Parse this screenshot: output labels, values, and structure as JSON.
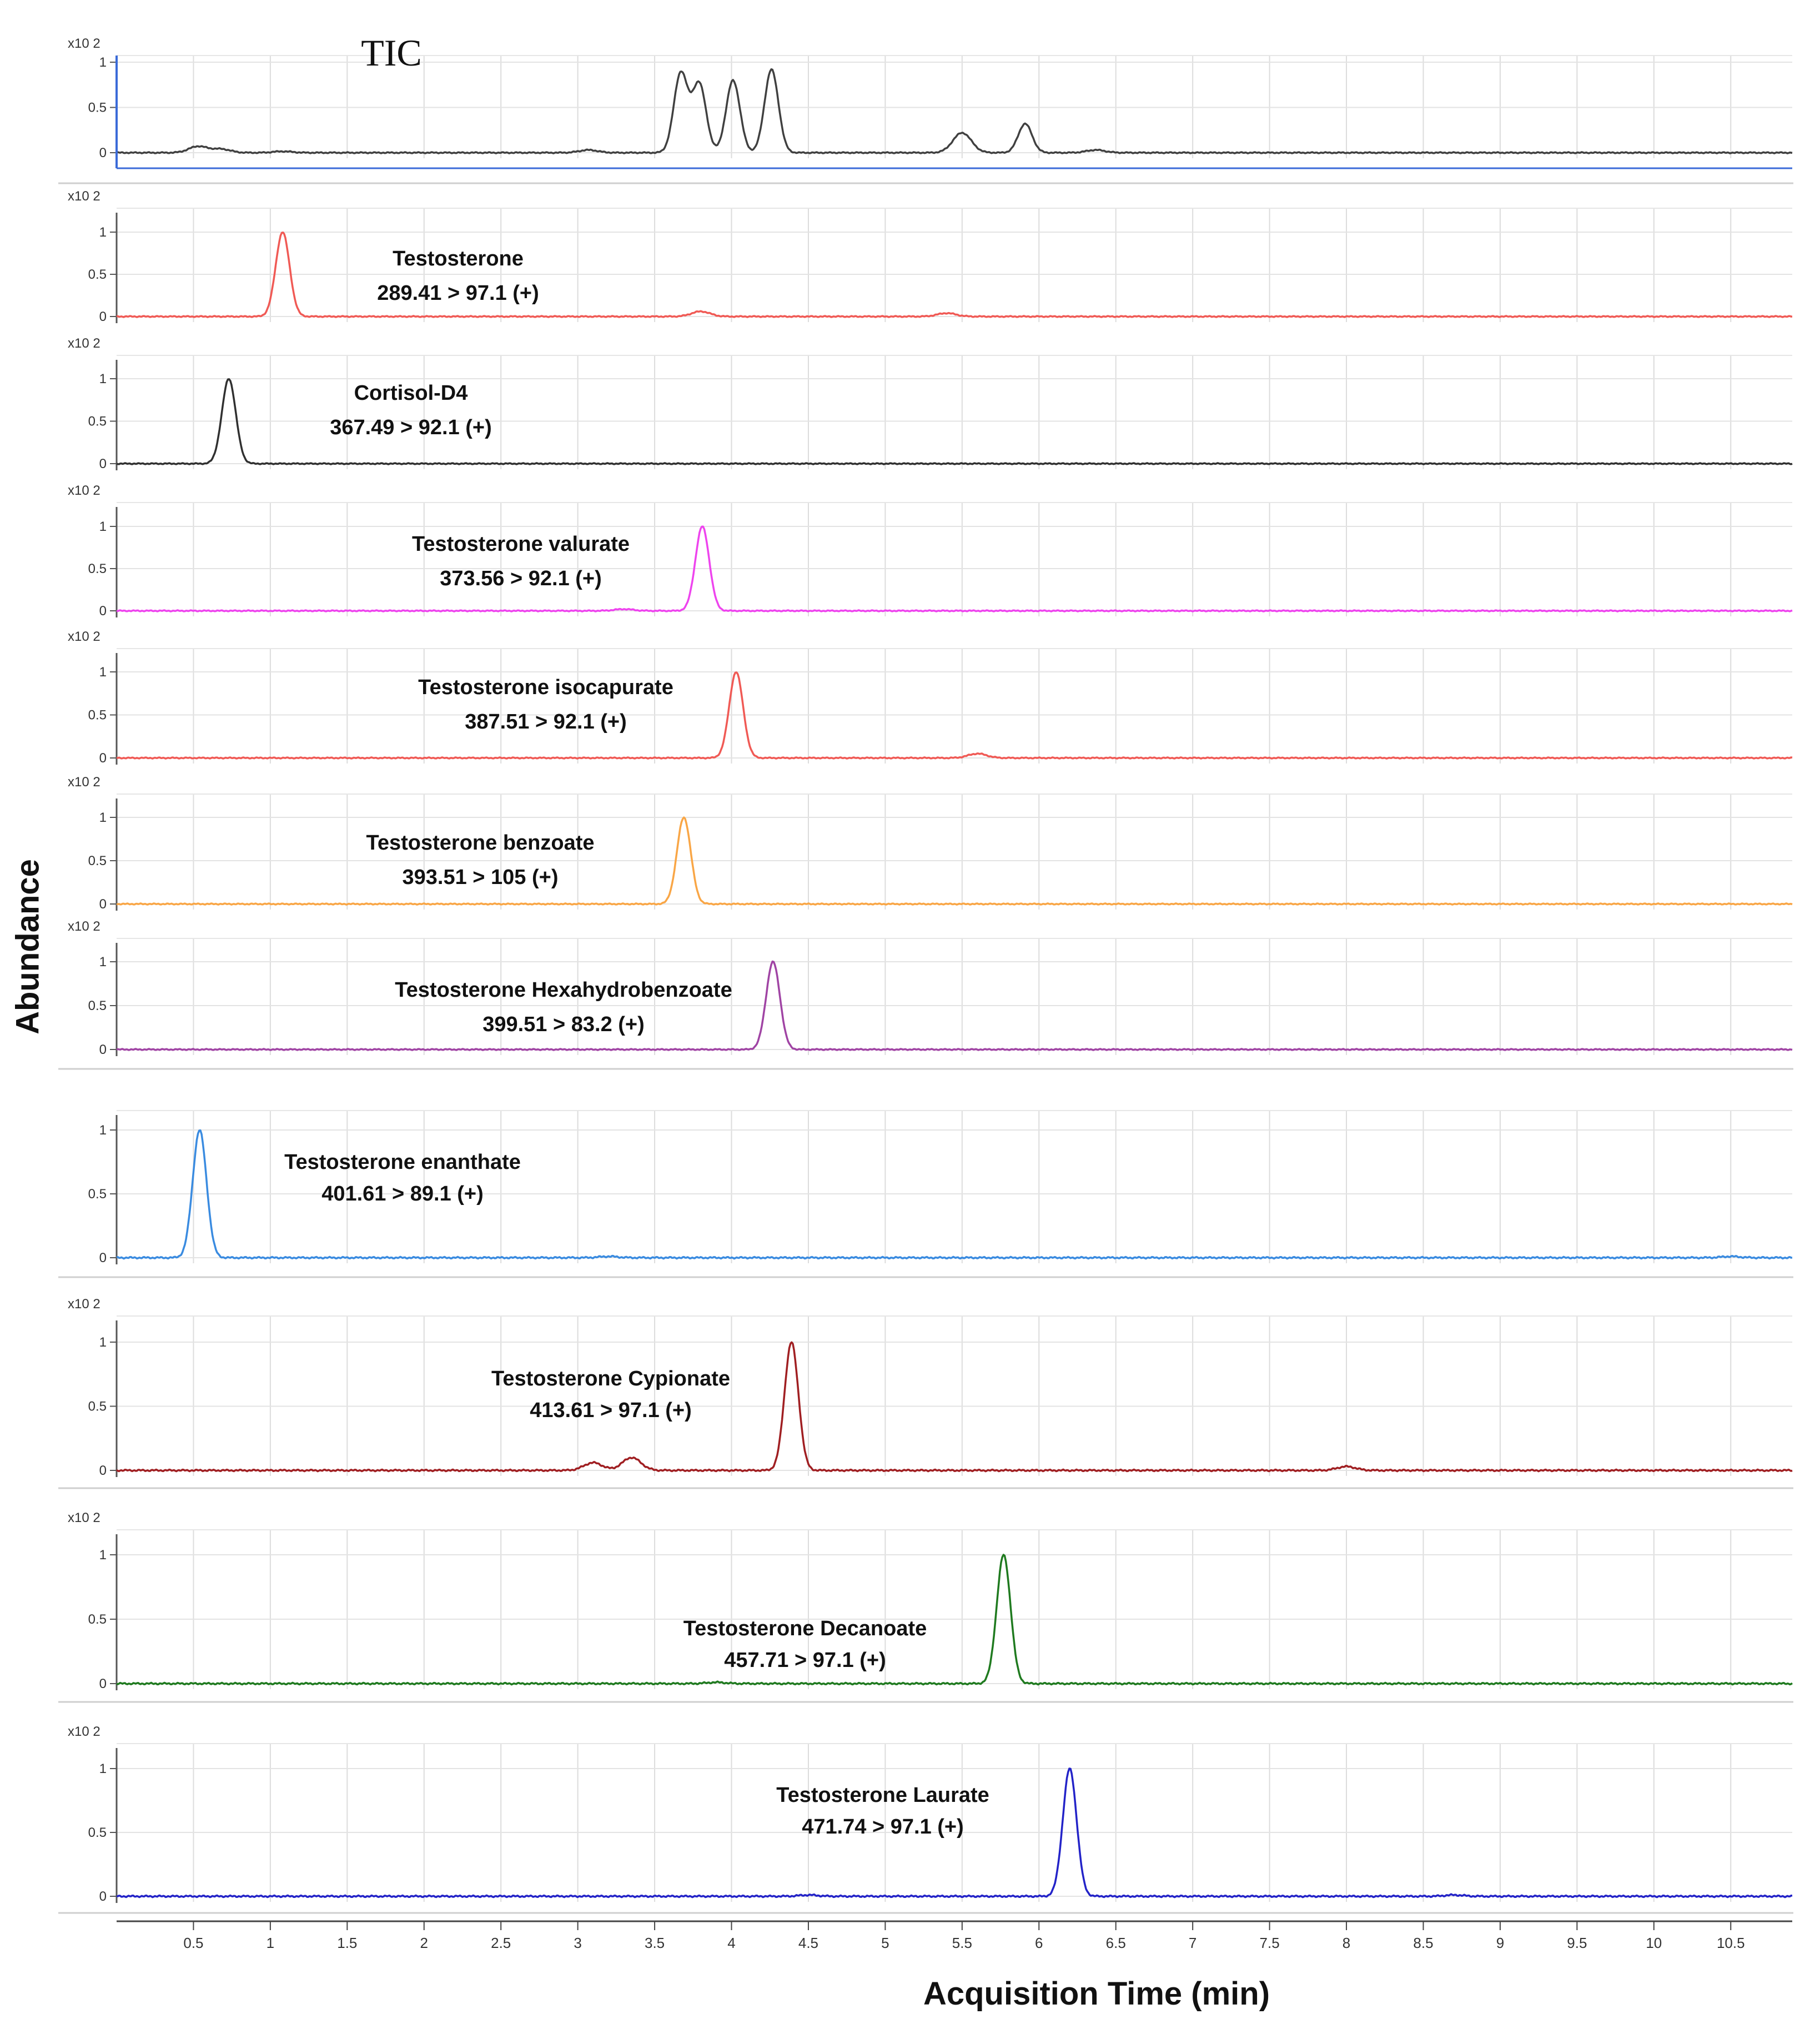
{
  "figure": {
    "ylabel": "Abundance",
    "xlabel": "Acquisition Time (min)",
    "x_ticks": [
      "0.5",
      "1",
      "1.5",
      "2",
      "2.5",
      "3",
      "3.5",
      "4",
      "4.5",
      "5",
      "5.5",
      "6",
      "6.5",
      "7",
      "7.5",
      "8",
      "8.5",
      "9",
      "9.5",
      "10",
      "10.5"
    ],
    "xlim": [
      0,
      10.9
    ],
    "y_ticks": [
      "0",
      "0.5",
      "1"
    ],
    "scale_label": "x10 2"
  },
  "chart_data": {
    "type": "line",
    "title": "",
    "xlabel": "Acquisition Time (min)",
    "ylabel": "Abundance",
    "x_unit": "min",
    "ylim": [
      0,
      1.1
    ],
    "xlim": [
      0,
      10.9
    ],
    "panels": [
      {
        "label": "TIC",
        "transition": "",
        "color": "#404040",
        "peaks": [
          [
            0.53,
            0.07
          ],
          [
            0.68,
            0.04
          ],
          [
            1.08,
            0.015
          ],
          [
            3.07,
            0.03
          ],
          [
            3.67,
            0.88
          ],
          [
            3.79,
            0.76
          ],
          [
            4.01,
            0.8
          ],
          [
            4.26,
            0.92
          ],
          [
            5.5,
            0.22
          ],
          [
            5.91,
            0.32
          ],
          [
            6.37,
            0.03
          ]
        ]
      },
      {
        "label": "Testosterone",
        "transition": "289.41 >  97.1 (+)",
        "color": "#f05a55",
        "peaks": [
          [
            1.08,
            1.0
          ],
          [
            3.8,
            0.06
          ],
          [
            5.4,
            0.04
          ]
        ]
      },
      {
        "label": "Cortisol-D4",
        "transition": "367.49 > 92.1 (+)",
        "color": "#303030",
        "peaks": [
          [
            0.73,
            1.0
          ]
        ]
      },
      {
        "label": "Testosterone valurate",
        "transition": "373.56 > 92.1 (+)",
        "color": "#ee44ee",
        "peaks": [
          [
            3.81,
            1.0
          ],
          [
            3.3,
            0.02
          ]
        ]
      },
      {
        "label": "Testosterone isocapurate",
        "transition": "387.51 > 92.1 (+)",
        "color": "#f05a55",
        "peaks": [
          [
            4.03,
            1.0
          ],
          [
            5.6,
            0.05
          ]
        ]
      },
      {
        "label": "Testosterone benzoate",
        "transition": "393.51 > 105 (+)",
        "color": "#f9a646",
        "peaks": [
          [
            3.69,
            1.0
          ]
        ]
      },
      {
        "label": "Testosterone Hexahydrobenzoate",
        "transition": "399.51 > 83.2 (+)",
        "color": "#a044a4",
        "peaks": [
          [
            4.27,
            1.0
          ]
        ]
      },
      {
        "label": "Testosterone enanthate",
        "transition": "401.61 >  89.1 (+)",
        "color": "#3a8be0",
        "peaks": [
          [
            0.54,
            1.0
          ],
          [
            3.2,
            0.01
          ],
          [
            10.5,
            0.01
          ]
        ]
      },
      {
        "label": "Testosterone Cypionate",
        "transition": "413.61 >  97.1 (+)",
        "color": "#a01f22",
        "peaks": [
          [
            4.39,
            1.0
          ],
          [
            3.1,
            0.06
          ],
          [
            3.35,
            0.1
          ],
          [
            8.0,
            0.03
          ]
        ]
      },
      {
        "label": "Testosterone Decanoate",
        "transition": "457.71 >  97.1 (+)",
        "color": "#1f7a1f",
        "peaks": [
          [
            5.77,
            1.0
          ],
          [
            3.9,
            0.01
          ]
        ]
      },
      {
        "label": "Testosterone Laurate",
        "transition": "471.74 >  97.1 (+)",
        "color": "#2323c8",
        "peaks": [
          [
            6.2,
            1.0
          ],
          [
            4.5,
            0.01
          ],
          [
            8.7,
            0.01
          ]
        ]
      }
    ]
  }
}
